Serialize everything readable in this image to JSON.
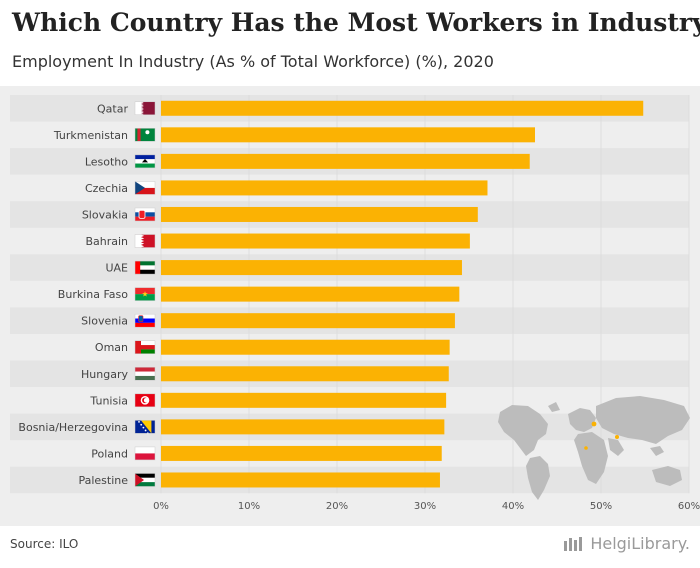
{
  "title": "Which Country Has the Most Workers in Industry?",
  "subtitle": "Employment In Industry (As % of Total Workforce) (%), 2020",
  "source": "Source: ILO",
  "logo_text": "HelgiLibrary.",
  "colors": {
    "bar": "#FBB203",
    "background": "#EEEEEE",
    "row_band": "#E4E4E4",
    "grid": "#DDDDDD",
    "map": "#BCBCBC",
    "highlight": "#FBB203"
  },
  "chart_data": {
    "type": "bar",
    "orientation": "horizontal",
    "title": "Which Country Has the Most Workers in Industry?",
    "subtitle": "Employment In Industry (As % of Total Workforce) (%), 2020",
    "categories": [
      "Qatar",
      "Turkmenistan",
      "Lesotho",
      "Czechia",
      "Slovakia",
      "Bahrain",
      "UAE",
      "Burkina Faso",
      "Slovenia",
      "Oman",
      "Hungary",
      "Tunisia",
      "Bosnia/Herzegovina",
      "Poland",
      "Palestine"
    ],
    "values": [
      54.8,
      42.5,
      41.9,
      37.1,
      36.0,
      35.1,
      34.2,
      33.9,
      33.4,
      32.8,
      32.7,
      32.4,
      32.2,
      31.9,
      31.7
    ],
    "xlim": [
      0,
      60
    ],
    "xticks": [
      0,
      10,
      20,
      30,
      40,
      50,
      60
    ],
    "xtick_labels": [
      "0%",
      "10%",
      "20%",
      "30%",
      "40%",
      "50%",
      "60%"
    ],
    "grid": true,
    "xlabel": "",
    "ylabel": "",
    "flags": [
      "qatar-flag-icon",
      "turkmenistan-flag-icon",
      "lesotho-flag-icon",
      "czechia-flag-icon",
      "slovakia-flag-icon",
      "bahrain-flag-icon",
      "uae-flag-icon",
      "burkina-faso-flag-icon",
      "slovenia-flag-icon",
      "oman-flag-icon",
      "hungary-flag-icon",
      "tunisia-flag-icon",
      "bosnia-herzegovina-flag-icon",
      "poland-flag-icon",
      "palestine-flag-icon"
    ]
  }
}
